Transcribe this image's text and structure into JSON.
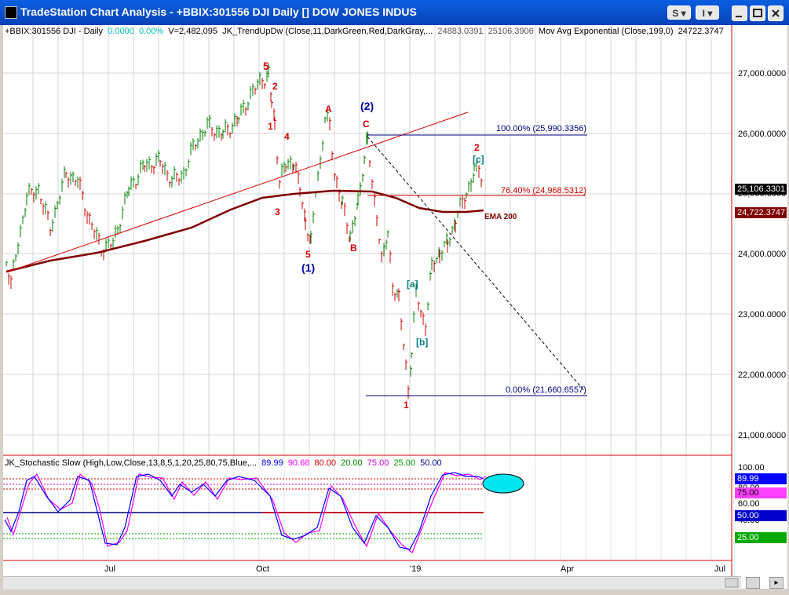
{
  "window": {
    "title": "TradeStation Chart Analysis - +BBIX:301556 DJI Daily [] DOW JONES INDUS",
    "btn_s": "S",
    "btn_i": "I"
  },
  "header": {
    "symbol": "+BBIX:301556 DJI - Daily",
    "net_change": "0.0000",
    "pct_change": "0.00%",
    "volume": "V=2,482,095",
    "indicator": "JK_TrendUpDw (Close,11,DarkGreen,Red,DarkGray,...",
    "ind_val1": "24883.0391",
    "ind_val2": "25106.3906",
    "ma_label": "Mov Avg Exponential (Close,199,0)",
    "ma_value": "24722.3747"
  },
  "price_axis": {
    "ticks": [
      "27,000.0000",
      "26,000.0000",
      "25,000.0000",
      "24,000.0000",
      "23,000.0000",
      "22,000.0000",
      "21,000.0000"
    ],
    "last_price": "25,106.3301",
    "ema_value": "24,722.3747"
  },
  "wave_labels": {
    "w5_top": "5",
    "w2_a": "2",
    "w1_a": "1",
    "w4": "4",
    "w3": "3",
    "w5_low": "5",
    "wave1_circled": "(1)",
    "wave2_circled": "(2)",
    "wa": "A",
    "wb": "B",
    "wc": "C",
    "w1_low": "1",
    "w_a_sq": "[a]",
    "w_b_sq": "[b]",
    "w_c_sq": "[c]",
    "w2_b": "2"
  },
  "fib": {
    "level_100": "100.00% (25,990.3356)",
    "level_764": "76.40% (24,968.5312)",
    "level_0": "0.00% (21,660.6557)"
  },
  "ema_tag": "EMA 200",
  "stoch": {
    "label": "JK_Stochastic Slow (High,Low,Close,13,8,5,1,20,25,80,75,Blue,...",
    "v1": "89.99",
    "v2": "90.68",
    "v3": "80.00",
    "v4": "20.00",
    "v5": "75.00",
    "v6": "25.00",
    "v7": "50.00",
    "ticks": [
      "100.00",
      "80.00",
      "60.00",
      "40.00"
    ],
    "box_8999": "89.99",
    "box_75": "75.00",
    "box_50": "50.00",
    "box_25": "25.00"
  },
  "time_axis": [
    "Jul",
    "Oct",
    "'19",
    "Apr",
    "Jul"
  ],
  "colors": {
    "title_bar": "#0842b8",
    "up_bar": "#008000",
    "down_bar": "#cc0000",
    "ema": "#800000",
    "wave_red": "#d40000",
    "wave_blue": "#0000aa",
    "wave_teal": "#008080",
    "stoch_k": "#0000ff",
    "stoch_d": "#ff00ff"
  }
}
